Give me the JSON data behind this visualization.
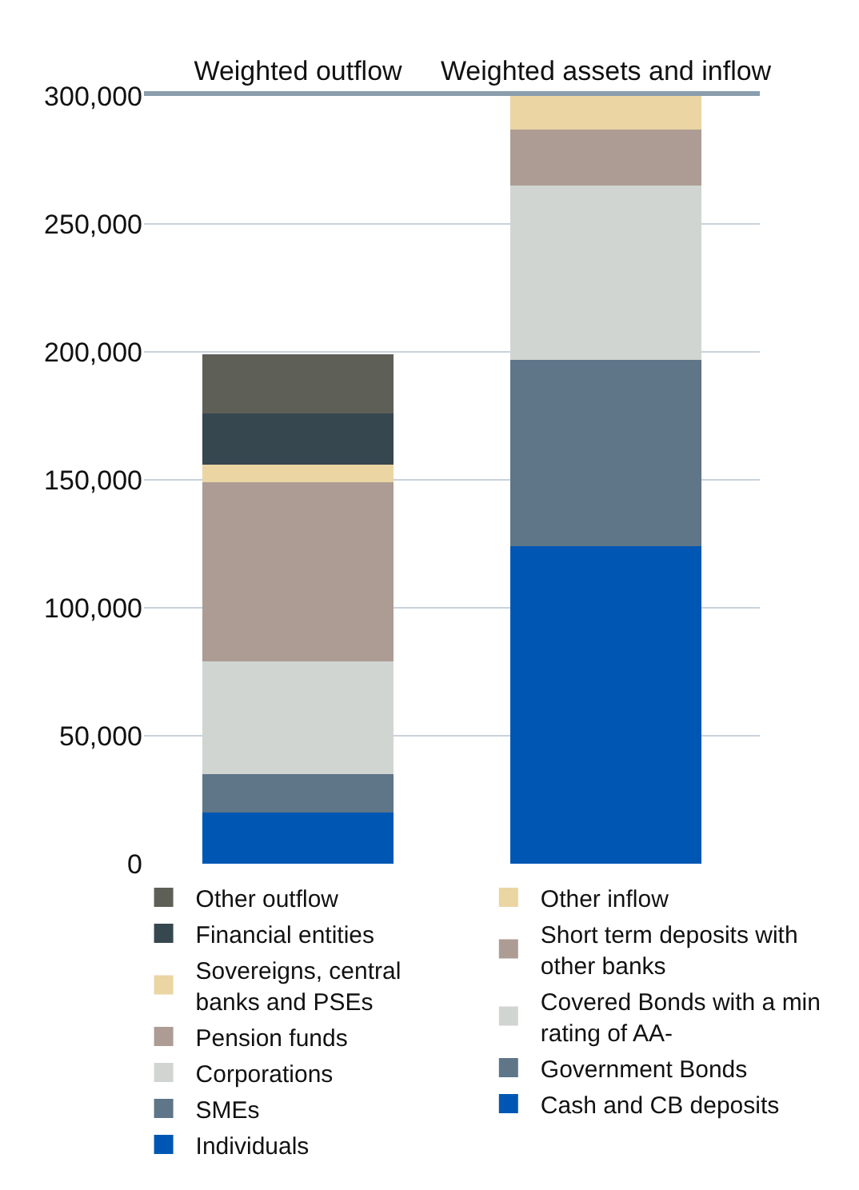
{
  "chart_data": {
    "type": "bar",
    "stacked": true,
    "categories": [
      "Weighted outflow",
      "Weighted assets and inflow"
    ],
    "ylim": [
      0,
      300000
    ],
    "yticks": [
      {
        "value": 0,
        "label": "0"
      },
      {
        "value": 50000,
        "label": "50,000"
      },
      {
        "value": 100000,
        "label": "100,000"
      },
      {
        "value": 150000,
        "label": "150,000"
      },
      {
        "value": 200000,
        "label": "200,000"
      },
      {
        "value": 250000,
        "label": "250,000"
      },
      {
        "value": 300000,
        "label": "300,000"
      }
    ],
    "grid": "y",
    "legend": "bottom",
    "series": [
      {
        "name": "Individuals",
        "color": "#0057b3",
        "values": [
          20000,
          null
        ]
      },
      {
        "name": "SMEs",
        "color": "#5f7588",
        "values": [
          15000,
          null
        ]
      },
      {
        "name": "Corporations",
        "color": "#d0d5d2",
        "values": [
          44000,
          null
        ]
      },
      {
        "name": "Pension funds",
        "color": "#ad9c93",
        "values": [
          70000,
          null
        ]
      },
      {
        "name": "Sovereigns, central banks and PSEs",
        "color": "#ead5a3",
        "values": [
          7000,
          null
        ]
      },
      {
        "name": "Financial entities",
        "color": "#36474f",
        "values": [
          20000,
          null
        ]
      },
      {
        "name": "Other outflow",
        "color": "#5e6058",
        "values": [
          23000,
          null
        ]
      },
      {
        "name": "Cash and CB deposits",
        "color": "#0057b3",
        "values": [
          null,
          124000
        ]
      },
      {
        "name": "Government Bonds",
        "color": "#5f7588",
        "values": [
          null,
          73000
        ]
      },
      {
        "name": "Covered Bonds with a min rating of AA-",
        "color": "#d0d5d2",
        "values": [
          null,
          68000
        ]
      },
      {
        "name": "Short term deposits with other banks",
        "color": "#ad9c93",
        "values": [
          null,
          22000
        ]
      },
      {
        "name": "Other inflow",
        "color": "#ead5a3",
        "values": [
          null,
          13000
        ]
      }
    ]
  }
}
